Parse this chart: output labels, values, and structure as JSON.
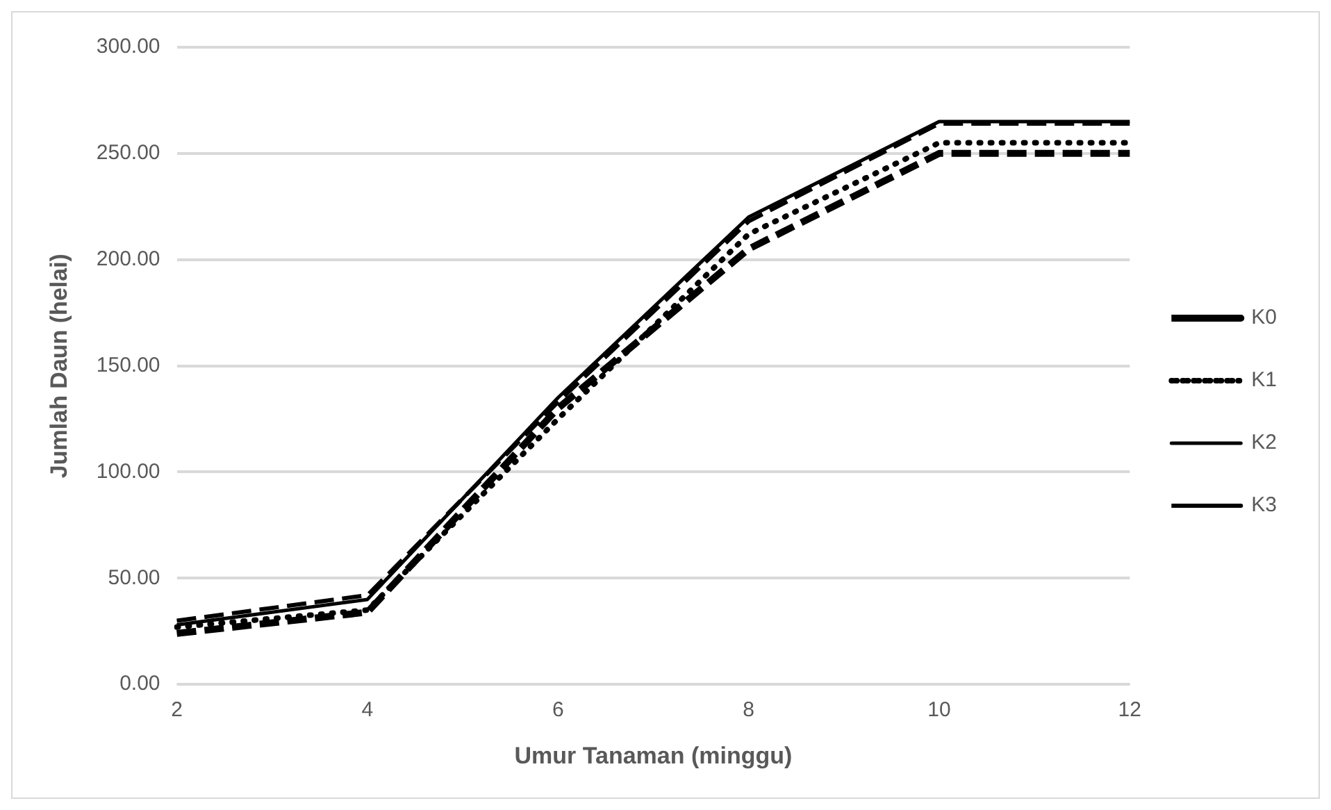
{
  "chart_data": {
    "type": "line",
    "xlabel": "Umur Tanaman (minggu)",
    "ylabel": "Jumlah Daun (helai)",
    "categories": [
      "2",
      "4",
      "6",
      "8",
      "10",
      "12"
    ],
    "series": [
      {
        "name": "K0",
        "color": "#000000",
        "line_style": "dashed",
        "values": [
          24,
          34,
          130,
          205,
          250,
          250
        ]
      },
      {
        "name": "K1",
        "color": "#000000",
        "line_style": "dotted",
        "values": [
          27,
          35,
          125,
          212,
          255,
          255
        ]
      },
      {
        "name": "K2",
        "color": "#000000",
        "line_style": "solid",
        "values": [
          28,
          40,
          135,
          220,
          265,
          265
        ]
      },
      {
        "name": "K3",
        "color": "#000000",
        "line_style": "dashed",
        "values": [
          30,
          42,
          133,
          218,
          264,
          264
        ]
      }
    ],
    "ylim": [
      0,
      300
    ],
    "yticks": [
      {
        "value": 0,
        "label": "0.00"
      },
      {
        "value": 50,
        "label": "50.00"
      },
      {
        "value": 100,
        "label": "100.00"
      },
      {
        "value": 150,
        "label": "150.00"
      },
      {
        "value": 200,
        "label": "200.00"
      },
      {
        "value": 250,
        "label": "250.00"
      },
      {
        "value": 300,
        "label": "300.00"
      }
    ],
    "grid": "y",
    "legend": "right",
    "marker": "none"
  }
}
